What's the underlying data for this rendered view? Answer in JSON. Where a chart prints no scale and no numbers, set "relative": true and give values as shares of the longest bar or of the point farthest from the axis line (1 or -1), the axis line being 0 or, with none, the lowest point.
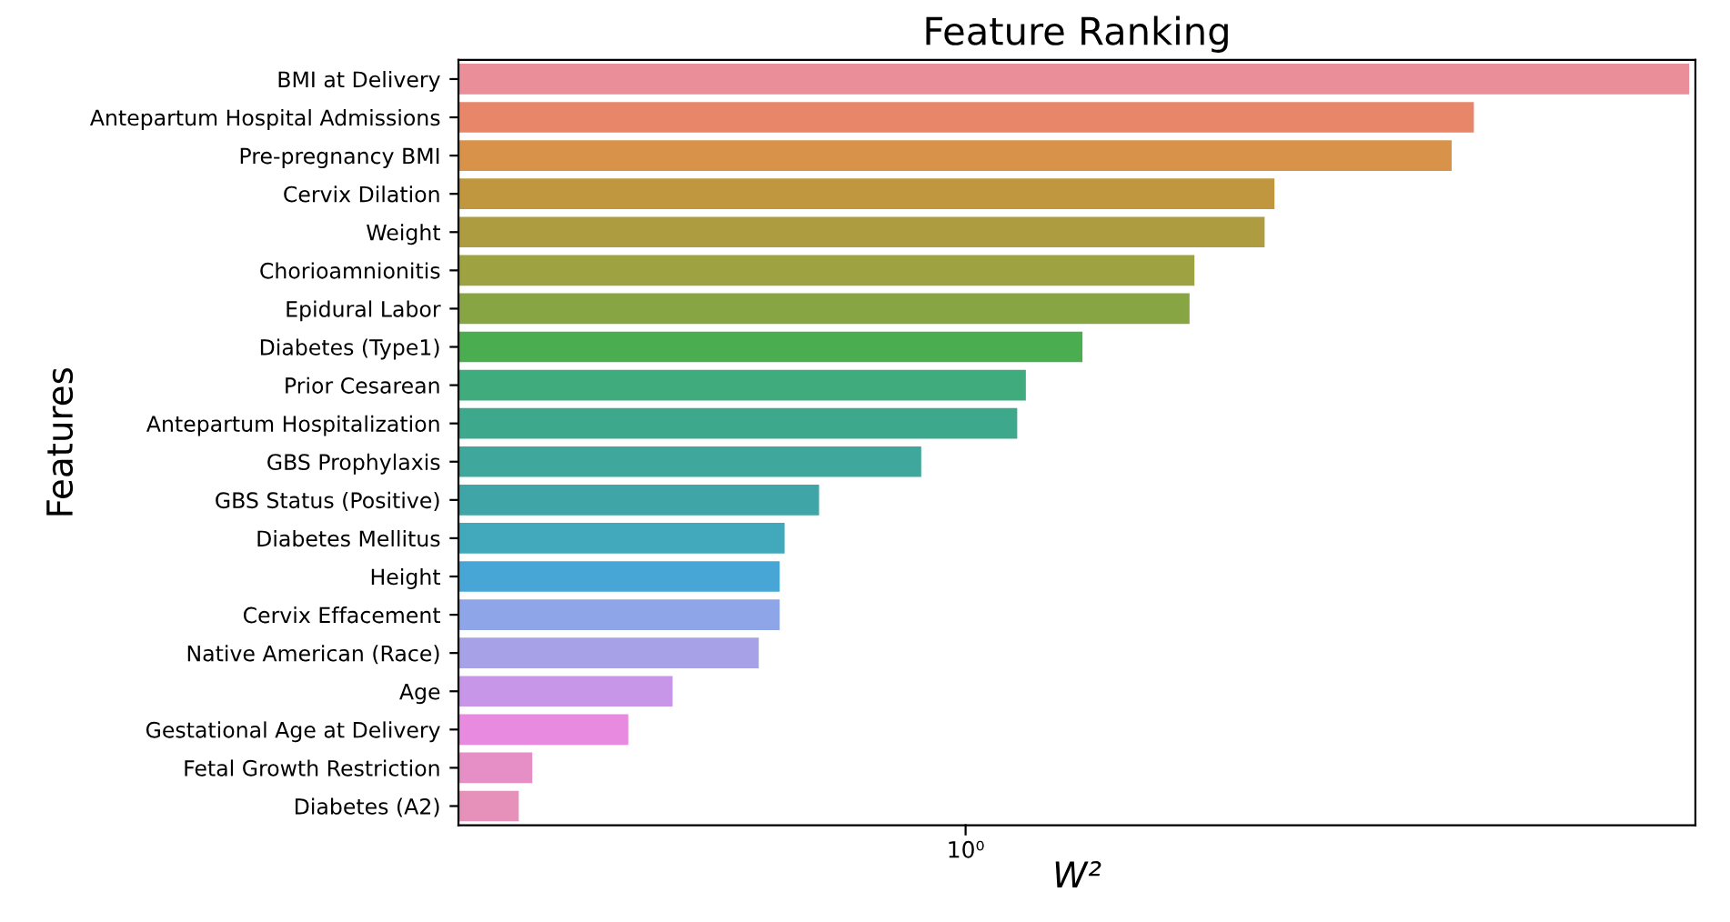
{
  "chart_data": {
    "type": "bar",
    "orientation": "horizontal",
    "relative": true,
    "title": "Feature Ranking",
    "xlabel": "W²",
    "ylabel": "Features",
    "categories": [
      "BMI at Delivery",
      "Antepartum Hospital Admissions",
      "Pre-pregnancy BMI",
      "Cervix Dilation",
      "Weight",
      "Chorioamnionitis",
      "Epidural Labor",
      "Diabetes (Type1)",
      "Prior Cesarean",
      "Antepartum Hospitalization",
      "GBS Prophylaxis",
      "GBS Status (Positive)",
      "Diabetes Mellitus",
      "Height",
      "Cervix Effacement",
      "Native American (Race)",
      "Age",
      "Gestational Age at Delivery",
      "Fetal Growth Restriction",
      "Diabetes (A2)"
    ],
    "values": [
      1,
      0.825,
      0.807,
      0.663,
      0.655,
      0.598,
      0.594,
      0.507,
      0.461,
      0.454,
      0.376,
      0.293,
      0.265,
      0.261,
      0.261,
      0.244,
      0.174,
      0.138,
      0.06,
      0.049
    ],
    "colors": [
      "#ea8f99",
      "#e8866a",
      "#d9924a",
      "#c0973f",
      "#ad9c40",
      "#9ea240",
      "#88a544",
      "#4aad4f",
      "#40ab7c",
      "#3ea88d",
      "#3fa79b",
      "#40a5a7",
      "#42a8bc",
      "#48a6d7",
      "#8ea5e8",
      "#a7a1e8",
      "#c896e8",
      "#e88ae0",
      "#e68ec6",
      "#e691b9"
    ],
    "annotations": [
      "10⁰"
    ],
    "grid": false,
    "legend": false
  }
}
